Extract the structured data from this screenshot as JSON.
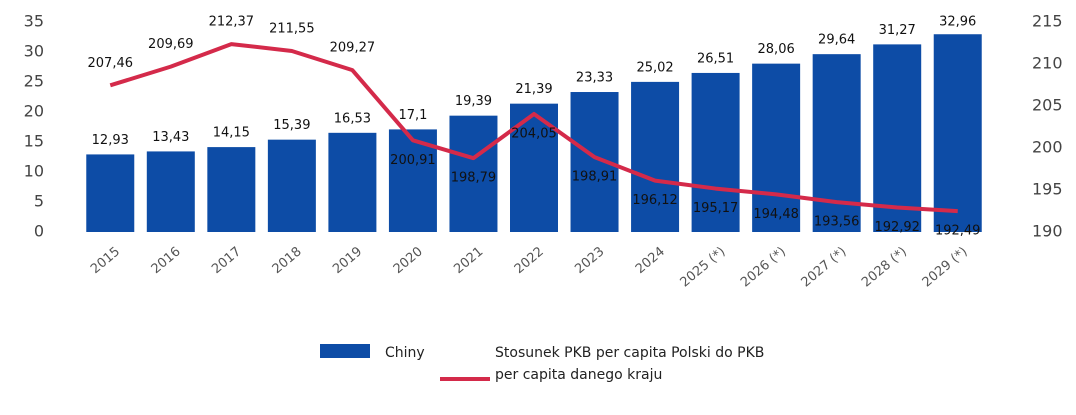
{
  "chart_data": {
    "type": "bar",
    "categories": [
      "2015",
      "2016",
      "2017",
      "2018",
      "2019",
      "2020",
      "2021",
      "2022",
      "2023",
      "2024",
      "2025 (*)",
      "2026 (*)",
      "2027 (*)",
      "2028 (*)",
      "2029 (*)"
    ],
    "series": [
      {
        "name": "Chiny",
        "type": "bar",
        "color": "#0d4ca6",
        "values": [
          12.93,
          13.43,
          14.15,
          15.39,
          16.53,
          17.1,
          19.39,
          21.39,
          23.33,
          25.02,
          26.51,
          28.06,
          29.64,
          31.27,
          32.96
        ],
        "value_labels": [
          "12,93",
          "13,43",
          "14,15",
          "15,39",
          "16,53",
          "17,1",
          "19,39",
          "21,39",
          "23,33",
          "25,02",
          "26,51",
          "28,06",
          "29,64",
          "31,27",
          "32,96"
        ]
      },
      {
        "name": "Stosunek PKB per capita Polski do PKB per capita danego kraju",
        "type": "line",
        "axis": "y2",
        "color": "#d42a4a",
        "values": [
          207.46,
          209.69,
          212.37,
          211.55,
          209.27,
          200.91,
          198.79,
          204.05,
          198.91,
          196.12,
          195.17,
          194.48,
          193.56,
          192.92,
          192.49
        ],
        "value_labels": [
          "207,46",
          "209,69",
          "212,37",
          "211,55",
          "209,27",
          "200,91",
          "198,79",
          "204,05",
          "198,91",
          "196,12",
          "195,17",
          "194,48",
          "193,56",
          "192,92",
          "192,49"
        ]
      }
    ],
    "ylim": [
      0,
      35
    ],
    "yticks": [
      0,
      5,
      10,
      15,
      20,
      25,
      30,
      35
    ],
    "y2lim": [
      190,
      215
    ],
    "y2ticks": [
      190,
      195,
      200,
      205,
      210,
      215
    ]
  }
}
